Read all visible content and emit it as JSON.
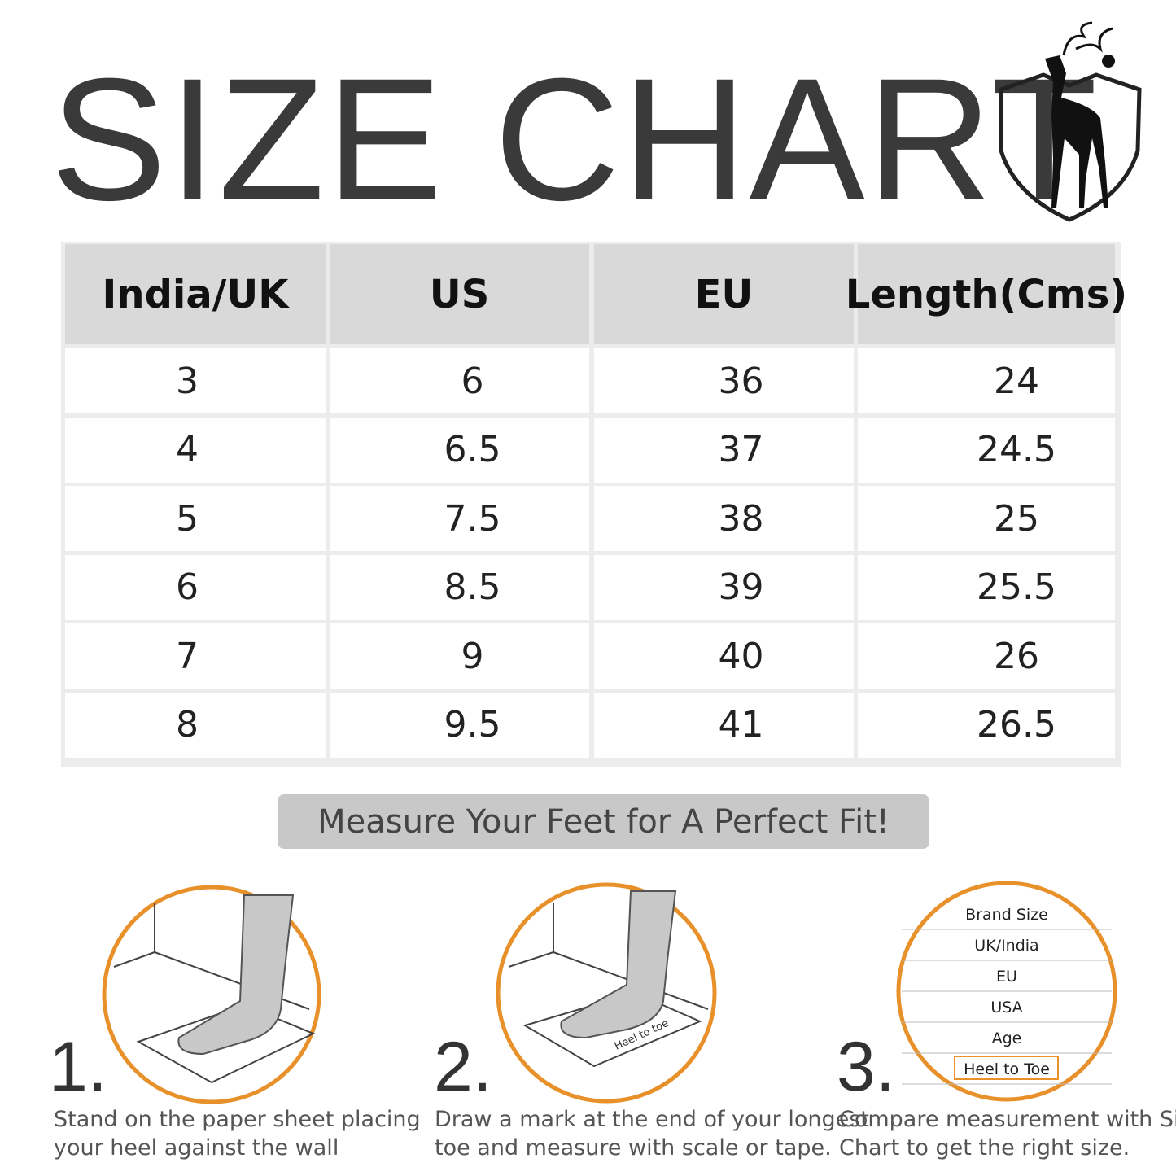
{
  "header": {
    "title": "SIZE CHART"
  },
  "table": {
    "columns": [
      "India/UK",
      "US",
      "EU",
      "Length(Cms)"
    ],
    "rows": [
      [
        "3",
        "6",
        "36",
        "24"
      ],
      [
        "4",
        "6.5",
        "37",
        "24.5"
      ],
      [
        "5",
        "7.5",
        "38",
        "25"
      ],
      [
        "6",
        "8.5",
        "39",
        "25.5"
      ],
      [
        "7",
        "9",
        "40",
        "26"
      ],
      [
        "8",
        "9.5",
        "41",
        "26.5"
      ]
    ]
  },
  "banner": "Measure Your Feet for A Perfect Fit!",
  "steps": [
    {
      "number": "1.",
      "lines": [
        "Stand on  the paper sheet placing",
        "your heel against the wall"
      ]
    },
    {
      "number": "2.",
      "lines": [
        "Draw a mark at the end of your longest",
        "toe and measure with scale or tape."
      ],
      "tag": "Heel to toe"
    },
    {
      "number": "3.",
      "lines": [
        "Compare measurement with Size",
        "Chart to get the right size."
      ],
      "chart": [
        "Brand Size",
        "UK/India",
        "EU",
        "USA",
        "Age",
        "Heel to Toe"
      ]
    }
  ]
}
